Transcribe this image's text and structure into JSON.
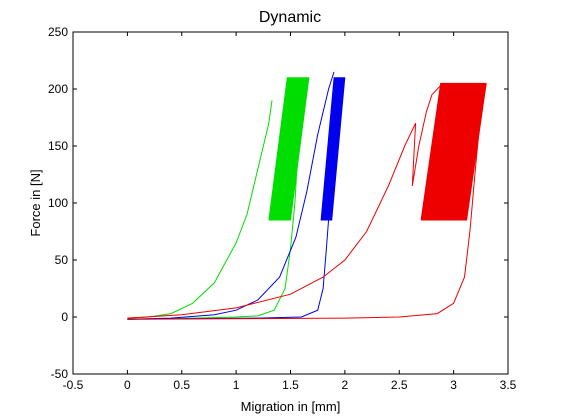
{
  "chart_data": {
    "type": "line",
    "title": "Dynamic",
    "xlabel": "Migration in [mm]",
    "ylabel": "Force in [N]",
    "xlim": [
      -0.5,
      3.5
    ],
    "ylim": [
      -50,
      250
    ],
    "xticks": [
      -0.5,
      0,
      0.5,
      1,
      1.5,
      2,
      2.5,
      3,
      3.5
    ],
    "xtick_labels": [
      "-0.5",
      "0",
      "0.5",
      "1",
      "1.5",
      "2",
      "2.5",
      "3",
      "3.5"
    ],
    "yticks": [
      -50,
      0,
      50,
      100,
      150,
      200,
      250
    ],
    "ytick_labels": [
      "-50",
      "0",
      "50",
      "100",
      "150",
      "200",
      "250"
    ],
    "grid": false,
    "legend": "none",
    "series": [
      {
        "color": "#00dd00",
        "loading": [
          [
            0.0,
            -1
          ],
          [
            0.2,
            0
          ],
          [
            0.4,
            3
          ],
          [
            0.6,
            12
          ],
          [
            0.8,
            30
          ],
          [
            1.0,
            65
          ],
          [
            1.1,
            90
          ],
          [
            1.2,
            130
          ],
          [
            1.3,
            170
          ],
          [
            1.33,
            190
          ]
        ],
        "unloading": [
          [
            1.65,
            210
          ],
          [
            1.62,
            190
          ],
          [
            1.57,
            150
          ],
          [
            1.54,
            100
          ],
          [
            1.5,
            60
          ],
          [
            1.45,
            25
          ],
          [
            1.35,
            6
          ],
          [
            1.2,
            1
          ],
          [
            1.0,
            0
          ],
          [
            0.6,
            -1
          ],
          [
            0.0,
            -2
          ]
        ],
        "cyclic_block": {
          "x_min_bottom": 1.3,
          "x_max_bottom": 1.5,
          "x_min_top": 1.47,
          "x_max_top": 1.67,
          "y_min": 85,
          "y_max": 210
        }
      },
      {
        "color": "#0000ee",
        "loading": [
          [
            0.0,
            -2
          ],
          [
            0.4,
            -1
          ],
          [
            0.8,
            2
          ],
          [
            1.0,
            6
          ],
          [
            1.2,
            15
          ],
          [
            1.4,
            35
          ],
          [
            1.55,
            70
          ],
          [
            1.65,
            110
          ],
          [
            1.75,
            160
          ],
          [
            1.85,
            200
          ],
          [
            1.9,
            215
          ]
        ],
        "unloading": [
          [
            1.98,
            210
          ],
          [
            1.95,
            190
          ],
          [
            1.9,
            150
          ],
          [
            1.87,
            110
          ],
          [
            1.83,
            60
          ],
          [
            1.8,
            25
          ],
          [
            1.75,
            6
          ],
          [
            1.6,
            0
          ],
          [
            1.2,
            -1
          ],
          [
            0.0,
            -2
          ]
        ],
        "cyclic_block": {
          "x_min_bottom": 1.78,
          "x_max_bottom": 1.88,
          "x_min_top": 1.9,
          "x_max_top": 2.0,
          "y_min": 85,
          "y_max": 210
        }
      },
      {
        "color": "#ee0000",
        "loading": [
          [
            0.0,
            -1
          ],
          [
            0.5,
            2
          ],
          [
            1.0,
            8
          ],
          [
            1.5,
            20
          ],
          [
            1.8,
            35
          ],
          [
            2.0,
            50
          ],
          [
            2.2,
            75
          ],
          [
            2.4,
            115
          ],
          [
            2.55,
            150
          ],
          [
            2.65,
            170
          ],
          [
            2.62,
            115
          ],
          [
            2.68,
            150
          ],
          [
            2.75,
            180
          ],
          [
            2.8,
            195
          ],
          [
            2.88,
            203
          ]
        ],
        "unloading": [
          [
            3.3,
            205
          ],
          [
            3.25,
            180
          ],
          [
            3.2,
            130
          ],
          [
            3.15,
            75
          ],
          [
            3.1,
            35
          ],
          [
            3.0,
            12
          ],
          [
            2.85,
            3
          ],
          [
            2.5,
            0
          ],
          [
            2.0,
            -1
          ],
          [
            0.0,
            -2
          ]
        ],
        "cyclic_block": {
          "x_min_bottom": 2.7,
          "x_max_bottom": 3.12,
          "x_min_top": 2.88,
          "x_max_top": 3.3,
          "y_min": 85,
          "y_max": 205
        }
      }
    ]
  }
}
